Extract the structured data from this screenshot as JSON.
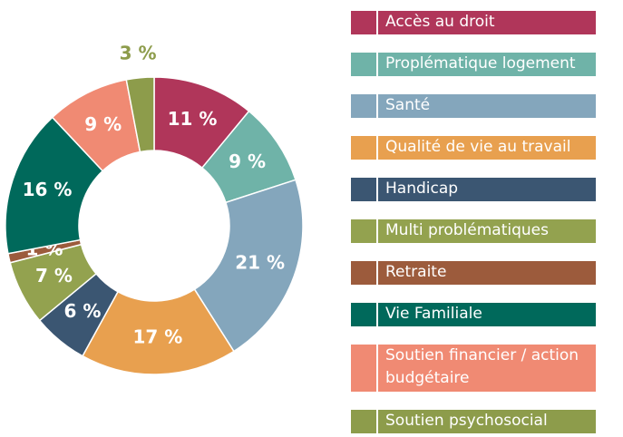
{
  "chart_data": {
    "type": "donut",
    "categories": [
      "Accès au droit",
      "Proplématique logement",
      "Santé",
      "Qualité de vie au travail",
      "Handicap",
      "Multi problématiques",
      "Retraite",
      "Vie Familiale",
      "Soutien financier / action budgétaire",
      "Soutien psychosocial"
    ],
    "values": [
      11,
      9,
      21,
      17,
      6,
      7,
      1,
      16,
      9,
      3
    ],
    "value_labels": [
      "11 %",
      "9 %",
      "21 %",
      "17 %",
      "6 %",
      "7 %",
      "1 %",
      "16 %",
      "9 %",
      "3 %"
    ],
    "colors": [
      "#b0365a",
      "#6fb3a8",
      "#84a6bc",
      "#e8a04f",
      "#3b5672",
      "#93a24f",
      "#9c5b3c",
      "#00695b",
      "#f08a73",
      "#8d9c4b"
    ],
    "legend": "right"
  }
}
